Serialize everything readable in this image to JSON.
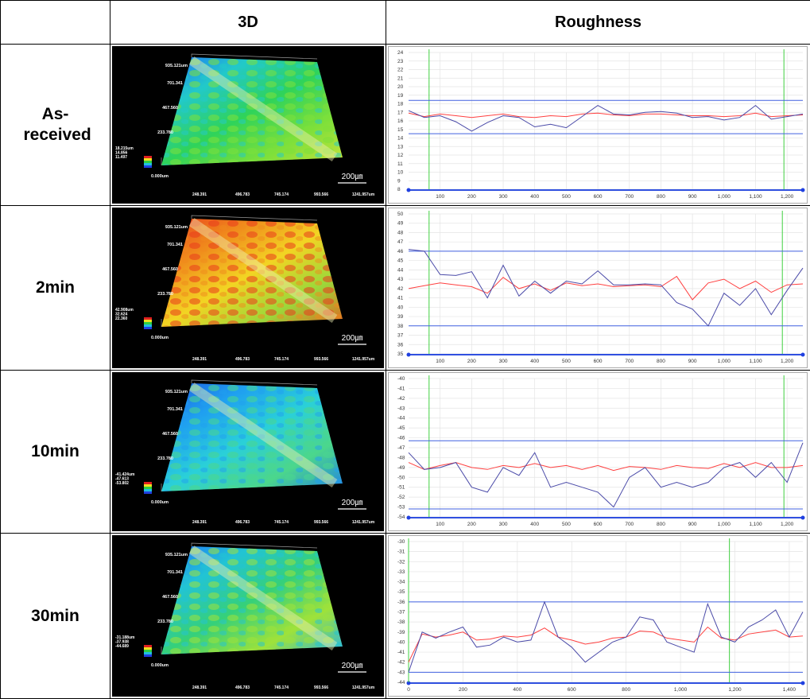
{
  "table": {
    "columns": [
      "3D",
      "Roughness"
    ],
    "rows": [
      {
        "label": "As-received",
        "render": {
          "y_labels": [
            "935.121um",
            "701.341",
            "467.560",
            "233.780",
            "0.000um"
          ],
          "legend": [
            "18.215um",
            "14.856",
            "11.497"
          ],
          "x_labels": [
            "248.391",
            "496.783",
            "745.174",
            "993.566",
            "1241.957um"
          ],
          "scale_bar": "200㎛"
        },
        "roughness": {
          "type": "line",
          "x": [
            0,
            50,
            100,
            150,
            200,
            250,
            300,
            350,
            400,
            450,
            500,
            550,
            600,
            650,
            700,
            750,
            800,
            850,
            900,
            950,
            1000,
            1050,
            1100,
            1150,
            1200,
            1250
          ],
          "xlim": [
            0,
            1250
          ],
          "xticks": [
            100,
            200,
            300,
            400,
            500,
            600,
            700,
            800,
            900,
            {
              "value": 1000,
              "label": "1,000"
            },
            {
              "value": 1100,
              "label": "1,100"
            },
            {
              "value": 1200,
              "label": "1,200"
            }
          ],
          "ylim": [
            8,
            24
          ],
          "yticks": [
            8,
            9,
            10,
            11,
            12,
            13,
            14,
            15,
            16,
            17,
            18,
            19,
            20,
            21,
            22,
            23,
            24
          ],
          "limits": [
            18.4,
            14.5
          ],
          "markers": [
            65,
            1190
          ],
          "series": [
            {
              "color": "#4a4aa8",
              "values": [
                17.2,
                16.4,
                16.6,
                15.9,
                14.8,
                15.8,
                16.6,
                16.4,
                15.3,
                15.6,
                15.2,
                16.5,
                17.8,
                16.8,
                16.7,
                17.0,
                17.1,
                16.9,
                16.4,
                16.5,
                16.1,
                16.4,
                17.8,
                16.2,
                16.5,
                16.8
              ]
            },
            {
              "color": "#ff4040",
              "values": [
                16.9,
                16.5,
                16.8,
                16.6,
                16.4,
                16.6,
                16.8,
                16.5,
                16.4,
                16.6,
                16.5,
                16.8,
                16.9,
                16.7,
                16.6,
                16.8,
                16.8,
                16.7,
                16.6,
                16.6,
                16.5,
                16.6,
                16.9,
                16.5,
                16.6,
                16.7
              ]
            }
          ]
        }
      },
      {
        "label": "2min",
        "render": {
          "y_labels": [
            "935.121um",
            "701.341",
            "467.560",
            "233.780",
            "0.000um"
          ],
          "legend": [
            "42.908um",
            "32.624",
            "22.360"
          ],
          "x_labels": [
            "248.391",
            "496.783",
            "745.174",
            "993.566",
            "1241.957um"
          ],
          "scale_bar": "200㎛"
        },
        "roughness": {
          "type": "line",
          "x": [
            0,
            50,
            100,
            150,
            200,
            250,
            300,
            350,
            400,
            450,
            500,
            550,
            600,
            650,
            700,
            750,
            800,
            850,
            900,
            950,
            1000,
            1050,
            1100,
            1150,
            1200,
            1250
          ],
          "xlim": [
            0,
            1250
          ],
          "xticks": [
            100,
            200,
            300,
            400,
            500,
            600,
            700,
            800,
            900,
            {
              "value": 1000,
              "label": "1,000"
            },
            {
              "value": 1100,
              "label": "1,100"
            },
            {
              "value": 1200,
              "label": "1,200"
            }
          ],
          "ylim": [
            35,
            50
          ],
          "yticks": [
            35,
            36,
            37,
            38,
            39,
            40,
            41,
            42,
            43,
            44,
            45,
            46,
            47,
            48,
            49,
            50
          ],
          "limits": [
            46,
            38
          ],
          "markers": [
            65,
            1185
          ],
          "series": [
            {
              "color": "#4a4aa8",
              "values": [
                46.2,
                46.0,
                43.5,
                43.4,
                43.8,
                41.0,
                44.5,
                41.2,
                42.8,
                41.5,
                42.8,
                42.5,
                43.9,
                42.4,
                42.4,
                42.5,
                42.4,
                40.5,
                39.8,
                38.0,
                41.5,
                40.2,
                42.0,
                39.2,
                41.8,
                44.2
              ]
            },
            {
              "color": "#ff4040",
              "values": [
                42.0,
                42.3,
                42.6,
                42.4,
                42.2,
                41.5,
                43.2,
                42.0,
                42.5,
                41.8,
                42.6,
                42.3,
                42.5,
                42.2,
                42.3,
                42.4,
                42.2,
                43.3,
                40.8,
                42.6,
                43.0,
                42.0,
                42.8,
                41.6,
                42.4,
                42.5
              ]
            }
          ]
        }
      },
      {
        "label": "10min",
        "render": {
          "y_labels": [
            "935.121um",
            "701.341",
            "467.560",
            "233.780",
            "0.000um"
          ],
          "legend": [
            "-41.424um",
            "-47.613",
            "-53.802"
          ],
          "x_labels": [
            "248.391",
            "496.783",
            "745.174",
            "993.566",
            "1241.957um"
          ],
          "scale_bar": "200㎛"
        },
        "roughness": {
          "type": "line",
          "x": [
            0,
            50,
            100,
            150,
            200,
            250,
            300,
            350,
            400,
            450,
            500,
            550,
            600,
            650,
            700,
            750,
            800,
            850,
            900,
            950,
            1000,
            1050,
            1100,
            1150,
            1200,
            1250
          ],
          "xlim": [
            0,
            1250
          ],
          "xticks": [
            100,
            200,
            300,
            400,
            500,
            600,
            700,
            800,
            900,
            {
              "value": 1000,
              "label": "1,000"
            },
            {
              "value": 1100,
              "label": "1,100"
            },
            {
              "value": 1200,
              "label": "1,200"
            }
          ],
          "ylim": [
            -54,
            -40
          ],
          "yticks": [
            -54,
            -53,
            -52,
            -51,
            -50,
            -49,
            -48,
            -47,
            -46,
            -45,
            -44,
            -43,
            -42,
            -41,
            -40
          ],
          "limits": [
            -46.3,
            -53.2
          ],
          "markers": [
            65,
            1190
          ],
          "series": [
            {
              "color": "#4a4aa8",
              "values": [
                -47.5,
                -49.2,
                -49.0,
                -48.5,
                -51.0,
                -51.5,
                -49.0,
                -49.8,
                -47.5,
                -51.0,
                -50.5,
                -51.0,
                -51.5,
                -53.0,
                -50.0,
                -49.0,
                -51.0,
                -50.5,
                -51.0,
                -50.5,
                -49.0,
                -48.5,
                -50.0,
                -48.5,
                -50.5,
                -46.5
              ]
            },
            {
              "color": "#ff4040",
              "values": [
                -48.5,
                -49.2,
                -48.8,
                -48.5,
                -49.0,
                -49.2,
                -48.8,
                -49.0,
                -48.6,
                -49.0,
                -48.8,
                -49.2,
                -48.8,
                -49.3,
                -48.9,
                -49.0,
                -49.2,
                -48.8,
                -49.0,
                -49.1,
                -48.6,
                -49.0,
                -48.5,
                -49.0,
                -49.0,
                -48.8
              ]
            }
          ]
        }
      },
      {
        "label": "30min",
        "render": {
          "y_labels": [
            "935.121um",
            "701.341",
            "467.560",
            "233.780",
            "0.000um"
          ],
          "legend": [
            "-31.188um",
            "-37.938",
            "-44.689"
          ],
          "x_labels": [
            "248.391",
            "496.783",
            "745.174",
            "993.566",
            "1241.957um"
          ],
          "scale_bar": "200㎛"
        },
        "roughness": {
          "type": "line",
          "x": [
            0,
            50,
            100,
            150,
            200,
            250,
            300,
            350,
            400,
            450,
            500,
            550,
            600,
            650,
            700,
            750,
            800,
            850,
            900,
            950,
            1000,
            1050,
            1100,
            1150,
            1200,
            1250,
            1300,
            1350,
            1400,
            1450
          ],
          "xlim": [
            0,
            1450
          ],
          "xticks": [
            0,
            200,
            400,
            600,
            800,
            {
              "value": 1000,
              "label": "1,000"
            },
            {
              "value": 1200,
              "label": "1,200"
            },
            {
              "value": 1400,
              "label": "1,400"
            }
          ],
          "ylim": [
            -44,
            -30
          ],
          "yticks": [
            -44,
            -43,
            -42,
            -41,
            -40,
            -39,
            -38,
            -37,
            -36,
            -35,
            -34,
            -33,
            -32,
            -31,
            -30
          ],
          "limits": [
            -36,
            -43
          ],
          "markers": [
            0,
            1180
          ],
          "series": [
            {
              "color": "#4a4aa8",
              "values": [
                -43,
                -39,
                -39.6,
                -39,
                -38.5,
                -40.5,
                -40.3,
                -39.5,
                -40,
                -39.8,
                -36.0,
                -39.5,
                -40.5,
                -42,
                -41,
                -40,
                -39.5,
                -37.5,
                -37.8,
                -40,
                -40.5,
                -41,
                -36.2,
                -39.5,
                -40,
                -38.5,
                -37.8,
                -36.8,
                -39.5,
                -37
              ]
            },
            {
              "color": "#ff4040",
              "values": [
                -42,
                -39.2,
                -39.5,
                -39.3,
                -39,
                -39.8,
                -39.7,
                -39.4,
                -39.5,
                -39.3,
                -38.6,
                -39.5,
                -39.8,
                -40.2,
                -40,
                -39.6,
                -39.5,
                -38.9,
                -39,
                -39.6,
                -39.8,
                -40,
                -38.5,
                -39.6,
                -39.8,
                -39.2,
                -39,
                -38.8,
                -39.5,
                -39.4
              ]
            }
          ]
        }
      }
    ]
  }
}
